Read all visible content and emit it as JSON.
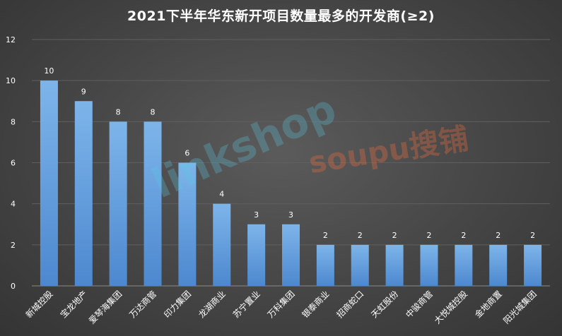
{
  "chart_data": {
    "type": "bar",
    "title": "2021下半年华东新开项目数量最多的开发商(≥2)",
    "categories": [
      "新城控股",
      "宝龙地产",
      "爱琴海集团",
      "万达商管",
      "印力集团",
      "龙湖商业",
      "苏宁置业",
      "万科集团",
      "银泰商业",
      "招商蛇口",
      "天虹股份",
      "中骏商管",
      "大悦城控股",
      "金地商置",
      "阳光城集团"
    ],
    "values": [
      10,
      9,
      8,
      8,
      6,
      4,
      3,
      3,
      2,
      2,
      2,
      2,
      2,
      2,
      2
    ],
    "ylim": [
      0,
      12
    ],
    "yticks": [
      0,
      2,
      4,
      6,
      8,
      10,
      12
    ],
    "xlabel": "",
    "ylabel": "",
    "grid": true,
    "legend": "none",
    "colors": {
      "bar_top": "#7db5ea",
      "bar_bottom": "#4d88cf",
      "grid": "#5f5f5f",
      "axis": "#8a8a8a",
      "text": "#ffffff"
    }
  },
  "watermarks": {
    "left": "linkshop",
    "right": "soupu搜铺"
  }
}
